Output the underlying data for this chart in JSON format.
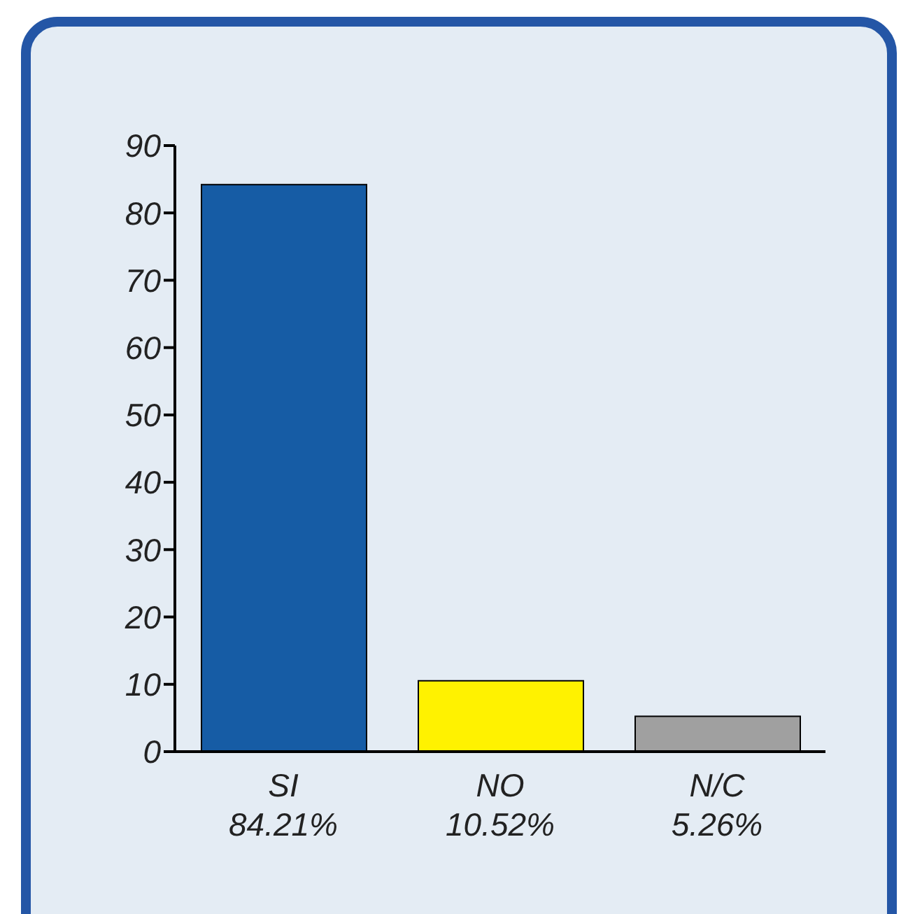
{
  "chart_data": {
    "type": "bar",
    "categories": [
      "SI",
      "NO",
      "N/C"
    ],
    "values": [
      84.21,
      10.52,
      5.26
    ],
    "colors": [
      "#165ca5",
      "#fff200",
      "#a0a0a0"
    ],
    "value_labels": [
      "84.21%",
      "10.52%",
      "5.26%"
    ],
    "ylim": [
      0,
      90
    ],
    "yticks": [
      0,
      10,
      20,
      30,
      40,
      50,
      60,
      70,
      80,
      90
    ],
    "grid": false,
    "legend": false
  }
}
